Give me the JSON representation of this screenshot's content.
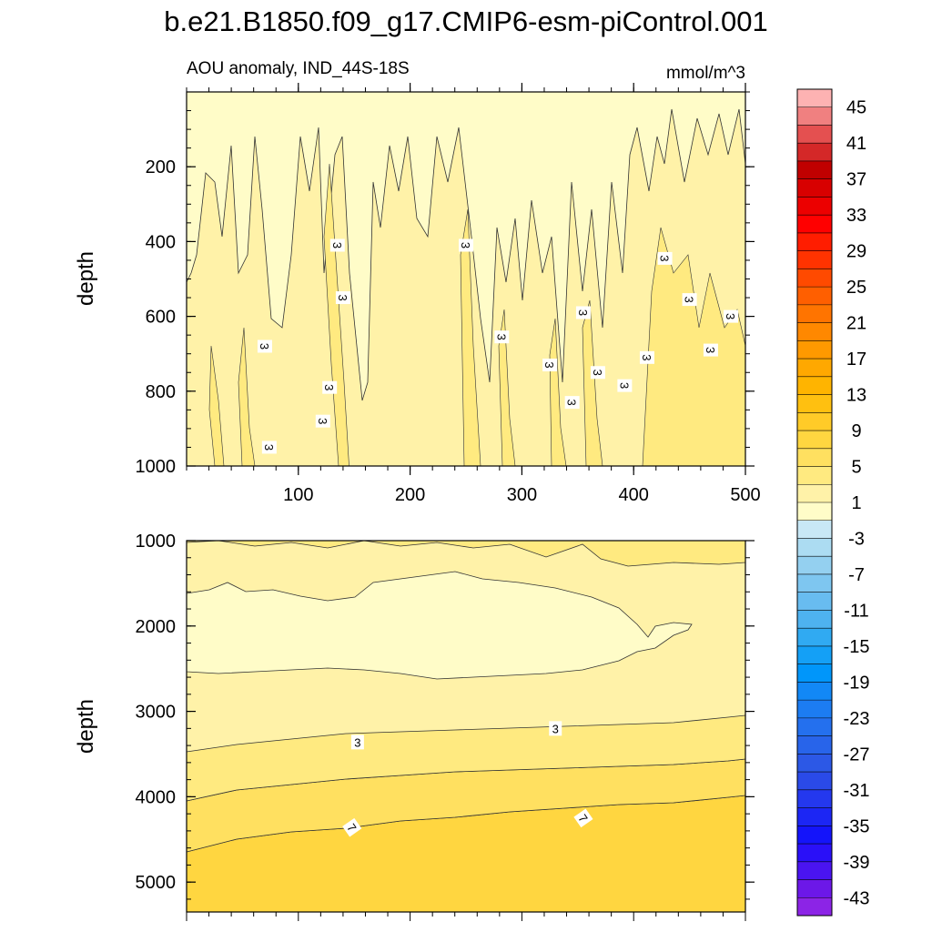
{
  "chart_data": {
    "type": "contour",
    "title": "b.e21.B1850.f09_g17.CMIP6-esm-piControl.001",
    "subtitle_left": "AOU anomaly, IND_44S-18S",
    "subtitle_right": "mmol/m^3",
    "panels": [
      {
        "name": "upper",
        "ylabel": "depth",
        "ylim": [
          0,
          1000
        ],
        "xlim": [
          0,
          500
        ],
        "yticks": [
          "200",
          "400",
          "600",
          "800",
          "1000"
        ],
        "xticks": [
          "100",
          "200",
          "300",
          "400",
          "500"
        ],
        "contour_labels": [
          {
            "x": 135,
            "y": 410,
            "text": "3"
          },
          {
            "x": 250,
            "y": 410,
            "text": "3"
          },
          {
            "x": 140,
            "y": 550,
            "text": "3"
          },
          {
            "x": 70,
            "y": 680,
            "text": "3"
          },
          {
            "x": 128,
            "y": 790,
            "text": "3"
          },
          {
            "x": 122,
            "y": 880,
            "text": "3"
          },
          {
            "x": 74,
            "y": 950,
            "text": "3"
          },
          {
            "x": 282,
            "y": 655,
            "text": "3"
          },
          {
            "x": 325,
            "y": 730,
            "text": "3"
          },
          {
            "x": 345,
            "y": 830,
            "text": "3"
          },
          {
            "x": 355,
            "y": 590,
            "text": "3"
          },
          {
            "x": 368,
            "y": 750,
            "text": "3"
          },
          {
            "x": 392,
            "y": 785,
            "text": "3"
          },
          {
            "x": 412,
            "y": 710,
            "text": "3"
          },
          {
            "x": 428,
            "y": 445,
            "text": "3"
          },
          {
            "x": 450,
            "y": 555,
            "text": "3"
          },
          {
            "x": 469,
            "y": 690,
            "text": "3"
          },
          {
            "x": 487,
            "y": 600,
            "text": "3"
          }
        ]
      },
      {
        "name": "lower",
        "ylabel": "depth",
        "ylim": [
          1000,
          5350
        ],
        "xlim": [
          0,
          500
        ],
        "yticks": [
          "1000",
          "2000",
          "3000",
          "4000",
          "5000"
        ],
        "contour_labels": [
          {
            "x": 153,
            "y": 3360,
            "text": "3"
          },
          {
            "x": 330,
            "y": 3200,
            "text": "3"
          },
          {
            "x": 148,
            "y": 4360,
            "text": "7"
          },
          {
            "x": 355,
            "y": 4250,
            "text": "7"
          }
        ]
      }
    ],
    "colorbar": {
      "labels": [
        "45",
        "41",
        "37",
        "33",
        "29",
        "25",
        "21",
        "17",
        "13",
        "9",
        "5",
        "1",
        "-3",
        "-7",
        "-11",
        "-15",
        "-19",
        "-23",
        "-27",
        "-31",
        "-35",
        "-39",
        "-43"
      ],
      "colors": [
        "#fdb2b2",
        "#f08080",
        "#e45050",
        "#d42828",
        "#c00000",
        "#d80000",
        "#ec0000",
        "#ff0000",
        "#ff1d00",
        "#ff3300",
        "#ff4a00",
        "#ff5f00",
        "#ff7400",
        "#ff8800",
        "#ff9900",
        "#ffa800",
        "#ffb400",
        "#ffc010",
        "#ffcb28",
        "#ffd640",
        "#ffe060",
        "#ffea80",
        "#fff2a8",
        "#fffcc8",
        "#c8e8f6",
        "#acdcf2",
        "#94d0f0",
        "#7ec6f0",
        "#68bcf0",
        "#4eb2f0",
        "#30aaf2",
        "#14a0f6",
        "#0096fa",
        "#1288f6",
        "#1c7cf2",
        "#2470ee",
        "#2864ea",
        "#2c58e6",
        "#2a4ae8",
        "#2438ee",
        "#1c26f4",
        "#1414fa",
        "#2a10f8",
        "#4a14f0",
        "#6c18e8",
        "#8c24e6"
      ]
    }
  }
}
